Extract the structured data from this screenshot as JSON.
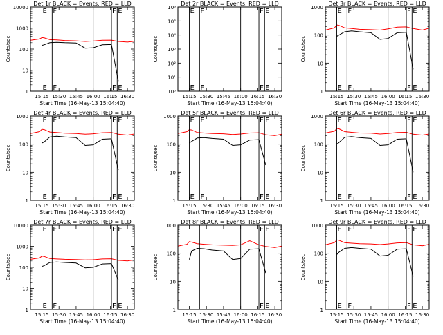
{
  "figure": {
    "xlabel": "Start Time (16-May-13 15:04:40)",
    "ylabel": "Counts/sec",
    "x_ticks": [
      "15:15",
      "15:30",
      "15:45",
      "16:00",
      "16:15",
      "16:30"
    ],
    "legend_text": "BLACK = Events, RED = LLD",
    "colors": {
      "events": "#000000",
      "lld": "#ff0000",
      "axes": "#000000"
    }
  },
  "chart_data": [
    {
      "type": "line",
      "title": "Det 1r BLACK = Events, RED = LLD",
      "x": [
        "15:05",
        "15:13",
        "15:15",
        "15:17",
        "15:22",
        "15:28",
        "15:35",
        "15:45",
        "15:53",
        "16:00",
        "16:08",
        "16:16",
        "16:22",
        "16:30",
        "16:36"
      ],
      "series": [
        {
          "name": "Events",
          "color": "#000000",
          "values": [
            null,
            null,
            150,
            160,
            200,
            210,
            200,
            195,
            110,
            115,
            160,
            165,
            3,
            null,
            null
          ]
        },
        {
          "name": "LLD",
          "color": "#ff0000",
          "values": [
            260,
            300,
            350,
            340,
            280,
            270,
            255,
            245,
            230,
            240,
            260,
            265,
            230,
            215,
            235
          ]
        }
      ],
      "ylim": [
        1,
        10000
      ],
      "y_scale": "log",
      "y_ticks": [
        "1",
        "10",
        "100",
        "1000",
        "10000"
      ],
      "markers": [
        {
          "label": "E",
          "pos": "15:15",
          "style": "solid"
        },
        {
          "label": "F",
          "pos": "15:24",
          "style": "solid"
        },
        {
          "label": "",
          "pos": "16:00",
          "style": "solid"
        },
        {
          "label": "F",
          "pos": "16:16",
          "style": "solid"
        },
        {
          "label": "E",
          "pos": "16:21",
          "style": "solid"
        },
        {
          "label": "",
          "pos": "16:36",
          "style": "dotted"
        }
      ]
    },
    {
      "type": "line",
      "title": "Det 2r BLACK = Events, RED = LLD",
      "x": [
        "15:05",
        "16:36"
      ],
      "series": [],
      "ylim": [
        1,
        1000000
      ],
      "y_scale": "log",
      "y_ticks": [
        "10⁰",
        "10¹",
        "10²",
        "10³",
        "10⁴",
        "10⁵",
        "10⁶"
      ],
      "markers": [
        {
          "label": "E",
          "pos": "15:15",
          "style": "solid"
        },
        {
          "label": "F",
          "pos": "15:24",
          "style": "solid"
        },
        {
          "label": "",
          "pos": "16:00",
          "style": "solid"
        },
        {
          "label": "F",
          "pos": "16:16",
          "style": "solid"
        },
        {
          "label": "E",
          "pos": "16:21",
          "style": "solid"
        },
        {
          "label": "",
          "pos": "16:36",
          "style": "dotted"
        }
      ]
    },
    {
      "type": "line",
      "title": "Det 3r BLACK = Events, RED = LLD",
      "x": [
        "15:05",
        "15:13",
        "15:15",
        "15:17",
        "15:22",
        "15:28",
        "15:35",
        "15:45",
        "15:53",
        "16:00",
        "16:08",
        "16:16",
        "16:22",
        "16:30",
        "16:36"
      ],
      "series": [
        {
          "name": "Events",
          "color": "#000000",
          "values": [
            null,
            null,
            90,
            100,
            130,
            140,
            130,
            120,
            70,
            75,
            120,
            125,
            6,
            null,
            null
          ]
        },
        {
          "name": "LLD",
          "color": "#ff0000",
          "values": [
            150,
            180,
            230,
            220,
            180,
            170,
            160,
            155,
            150,
            165,
            190,
            195,
            170,
            150,
            175
          ]
        }
      ],
      "ylim": [
        1,
        1000
      ],
      "y_scale": "log",
      "y_ticks": [
        "1",
        "10",
        "100",
        "1000"
      ],
      "markers": [
        {
          "label": "E",
          "pos": "15:15",
          "style": "solid"
        },
        {
          "label": "F",
          "pos": "15:24",
          "style": "solid"
        },
        {
          "label": "",
          "pos": "16:00",
          "style": "solid"
        },
        {
          "label": "F",
          "pos": "16:16",
          "style": "solid"
        },
        {
          "label": "E",
          "pos": "16:21",
          "style": "solid"
        },
        {
          "label": "",
          "pos": "16:36",
          "style": "dotted"
        }
      ]
    },
    {
      "type": "line",
      "title": "Det 4r BLACK = Events, RED = LLD",
      "x": [
        "15:05",
        "15:13",
        "15:15",
        "15:17",
        "15:22",
        "15:28",
        "15:35",
        "15:45",
        "15:53",
        "16:00",
        "16:08",
        "16:16",
        "16:22",
        "16:30",
        "16:36"
      ],
      "series": [
        {
          "name": "Events",
          "color": "#000000",
          "values": [
            null,
            null,
            110,
            120,
            180,
            190,
            180,
            170,
            90,
            95,
            150,
            155,
            12,
            null,
            null
          ]
        },
        {
          "name": "LLD",
          "color": "#ff0000",
          "values": [
            240,
            280,
            340,
            330,
            270,
            260,
            245,
            240,
            225,
            235,
            255,
            260,
            225,
            210,
            230
          ]
        }
      ],
      "ylim": [
        1,
        1000
      ],
      "y_scale": "log",
      "y_ticks": [
        "1",
        "10",
        "100",
        "1000"
      ],
      "markers": [
        {
          "label": "E",
          "pos": "15:15",
          "style": "solid"
        },
        {
          "label": "F",
          "pos": "15:24",
          "style": "solid"
        },
        {
          "label": "",
          "pos": "16:00",
          "style": "solid"
        },
        {
          "label": "F",
          "pos": "16:16",
          "style": "solid"
        },
        {
          "label": "E",
          "pos": "16:21",
          "style": "solid"
        },
        {
          "label": "",
          "pos": "16:36",
          "style": "dotted"
        }
      ]
    },
    {
      "type": "line",
      "title": "Det 5r BLACK = Events, RED = LLD",
      "x": [
        "15:05",
        "15:13",
        "15:15",
        "15:17",
        "15:22",
        "15:28",
        "15:35",
        "15:45",
        "15:53",
        "16:00",
        "16:08",
        "16:16",
        "16:22",
        "16:30",
        "16:36"
      ],
      "series": [
        {
          "name": "Events",
          "color": "#000000",
          "values": [
            null,
            null,
            110,
            125,
            165,
            170,
            160,
            150,
            90,
            95,
            140,
            145,
            18,
            null,
            null
          ]
        },
        {
          "name": "LLD",
          "color": "#ff0000",
          "values": [
            240,
            280,
            330,
            320,
            260,
            250,
            240,
            235,
            220,
            230,
            250,
            255,
            215,
            200,
            225
          ]
        }
      ],
      "ylim": [
        1,
        1000
      ],
      "y_scale": "log",
      "y_ticks": [
        "1",
        "10",
        "100",
        "1000"
      ],
      "markers": [
        {
          "label": "E",
          "pos": "15:15",
          "style": "solid"
        },
        {
          "label": "F",
          "pos": "15:24",
          "style": "solid"
        },
        {
          "label": "",
          "pos": "16:00",
          "style": "solid"
        },
        {
          "label": "F",
          "pos": "16:16",
          "style": "solid"
        },
        {
          "label": "E",
          "pos": "16:21",
          "style": "solid"
        },
        {
          "label": "",
          "pos": "16:36",
          "style": "dotted"
        }
      ]
    },
    {
      "type": "line",
      "title": "Det 6r BLACK = Events, RED = LLD",
      "x": [
        "15:05",
        "15:13",
        "15:15",
        "15:17",
        "15:22",
        "15:28",
        "15:35",
        "15:45",
        "15:53",
        "16:00",
        "16:08",
        "16:16",
        "16:22",
        "16:30",
        "16:36"
      ],
      "series": [
        {
          "name": "Events",
          "color": "#000000",
          "values": [
            null,
            null,
            100,
            115,
            175,
            185,
            170,
            160,
            90,
            95,
            150,
            155,
            10,
            null,
            null
          ]
        },
        {
          "name": "LLD",
          "color": "#ff0000",
          "values": [
            250,
            290,
            360,
            350,
            280,
            265,
            250,
            245,
            230,
            240,
            260,
            265,
            225,
            210,
            230
          ]
        }
      ],
      "ylim": [
        1,
        1000
      ],
      "y_scale": "log",
      "y_ticks": [
        "1",
        "10",
        "100",
        "1000"
      ],
      "markers": [
        {
          "label": "E",
          "pos": "15:15",
          "style": "solid"
        },
        {
          "label": "F",
          "pos": "15:24",
          "style": "solid"
        },
        {
          "label": "",
          "pos": "16:00",
          "style": "solid"
        },
        {
          "label": "F",
          "pos": "16:16",
          "style": "solid"
        },
        {
          "label": "E",
          "pos": "16:21",
          "style": "solid"
        },
        {
          "label": "",
          "pos": "16:36",
          "style": "dotted"
        }
      ]
    },
    {
      "type": "line",
      "title": "Det 7r BLACK = Events, RED = LLD",
      "x": [
        "15:05",
        "15:13",
        "15:15",
        "15:17",
        "15:22",
        "15:28",
        "15:35",
        "15:45",
        "15:53",
        "16:00",
        "16:08",
        "16:16",
        "16:22",
        "16:30",
        "16:36"
      ],
      "series": [
        {
          "name": "Events",
          "color": "#000000",
          "values": [
            null,
            null,
            110,
            120,
            170,
            180,
            170,
            160,
            95,
            100,
            145,
            150,
            25,
            null,
            null
          ]
        },
        {
          "name": "LLD",
          "color": "#ff0000",
          "values": [
            240,
            280,
            340,
            330,
            260,
            250,
            240,
            235,
            225,
            230,
            250,
            255,
            215,
            200,
            225
          ]
        }
      ],
      "ylim": [
        1,
        10000
      ],
      "y_scale": "log",
      "y_ticks": [
        "1",
        "10",
        "100",
        "1000",
        "10000"
      ],
      "markers": [
        {
          "label": "E",
          "pos": "15:15",
          "style": "solid"
        },
        {
          "label": "F",
          "pos": "15:24",
          "style": "solid"
        },
        {
          "label": "",
          "pos": "16:00",
          "style": "solid"
        },
        {
          "label": "F",
          "pos": "16:16",
          "style": "solid"
        },
        {
          "label": "E",
          "pos": "16:21",
          "style": "solid"
        },
        {
          "label": "",
          "pos": "16:36",
          "style": "dotted"
        }
      ]
    },
    {
      "type": "line",
      "title": "Det 8r BLACK = Events, RED = LLD",
      "x": [
        "15:05",
        "15:13",
        "15:15",
        "15:17",
        "15:22",
        "15:28",
        "15:35",
        "15:45",
        "15:53",
        "16:00",
        "16:08",
        "16:16",
        "16:22",
        "16:30",
        "16:36"
      ],
      "series": [
        {
          "name": "Events",
          "color": "#000000",
          "values": [
            null,
            null,
            60,
            120,
            150,
            145,
            130,
            120,
            60,
            65,
            140,
            145,
            20,
            null,
            null
          ]
        },
        {
          "name": "LLD",
          "color": "#ff0000",
          "values": [
            180,
            210,
            260,
            250,
            220,
            210,
            200,
            195,
            190,
            200,
            280,
            200,
            175,
            160,
            180
          ]
        }
      ],
      "ylim": [
        1,
        1000
      ],
      "y_scale": "log",
      "y_ticks": [
        "1",
        "10",
        "100",
        "1000"
      ],
      "markers": [
        {
          "label": "",
          "pos": "15:24",
          "style": "solid"
        },
        {
          "label": "",
          "pos": "16:00",
          "style": "solid"
        },
        {
          "label": "F",
          "pos": "16:16",
          "style": "solid"
        },
        {
          "label": "E",
          "pos": "16:21",
          "style": "solid"
        },
        {
          "label": "",
          "pos": "16:36",
          "style": "dotted"
        }
      ]
    },
    {
      "type": "line",
      "title": "Det 9r BLACK = Events, RED = LLD",
      "x": [
        "15:05",
        "15:13",
        "15:15",
        "15:17",
        "15:22",
        "15:28",
        "15:35",
        "15:45",
        "15:53",
        "16:00",
        "16:08",
        "16:16",
        "16:22",
        "16:30",
        "16:36"
      ],
      "series": [
        {
          "name": "Events",
          "color": "#000000",
          "values": [
            null,
            null,
            90,
            110,
            150,
            160,
            150,
            140,
            80,
            85,
            140,
            145,
            15,
            null,
            null
          ]
        },
        {
          "name": "LLD",
          "color": "#ff0000",
          "values": [
            200,
            240,
            300,
            290,
            240,
            230,
            220,
            215,
            205,
            215,
            235,
            240,
            200,
            185,
            210
          ]
        }
      ],
      "ylim": [
        1,
        1000
      ],
      "y_scale": "log",
      "y_ticks": [
        "1",
        "10",
        "100",
        "1000"
      ],
      "markers": [
        {
          "label": "E",
          "pos": "15:15",
          "style": "solid"
        },
        {
          "label": "F",
          "pos": "15:24",
          "style": "solid"
        },
        {
          "label": "",
          "pos": "16:00",
          "style": "solid"
        },
        {
          "label": "F",
          "pos": "16:16",
          "style": "solid"
        },
        {
          "label": "E",
          "pos": "16:21",
          "style": "solid"
        },
        {
          "label": "",
          "pos": "16:36",
          "style": "dotted"
        }
      ]
    }
  ]
}
